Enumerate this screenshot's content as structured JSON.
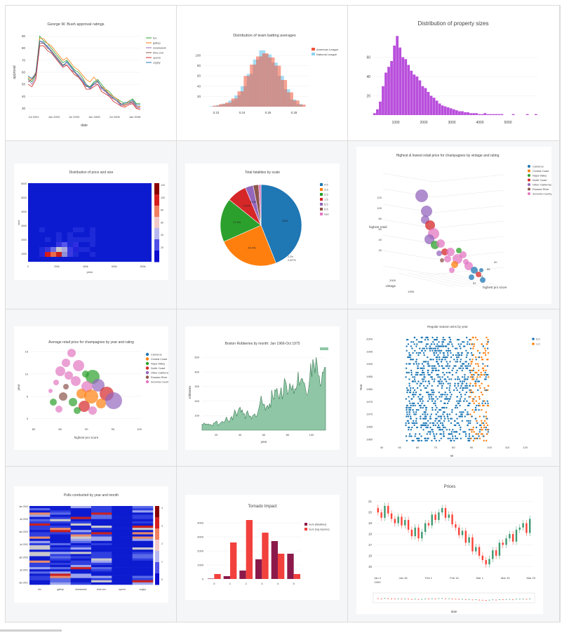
{
  "charts": [
    {
      "id": "bush",
      "type": "line",
      "title": "George W. Bush approval ratings",
      "xlabel": "date",
      "ylabel": "approval",
      "xticks": [
        "Jul 2001",
        "Jan 2003",
        "Jul 2003",
        "Jan 2005",
        "Jul 2006",
        "Jan 2008"
      ],
      "yticks": [
        "90",
        "80",
        "70",
        "60",
        "50",
        "40",
        "30"
      ],
      "ylim": [
        28,
        92
      ],
      "legend": [
        "fox",
        "gallup",
        "newsweek",
        "time.cnn",
        "upenn",
        "zogby"
      ],
      "colors": [
        "#2ca02c",
        "#ff7f0e",
        "#9467bd",
        "#8c564b",
        "#d62728",
        "#1f77b4"
      ],
      "series": [
        [
          55,
          52,
          58,
          90,
          86,
          84,
          80,
          76,
          72,
          68,
          70,
          66,
          62,
          60,
          56,
          50,
          48,
          52,
          54,
          50,
          46,
          44,
          40,
          38,
          36,
          34,
          36,
          38,
          34,
          34
        ],
        [
          56,
          54,
          60,
          88,
          88,
          84,
          82,
          78,
          74,
          70,
          72,
          68,
          64,
          62,
          58,
          54,
          52,
          56,
          52,
          48,
          46,
          42,
          40,
          38,
          34,
          32,
          36,
          34,
          30,
          32
        ],
        [
          54,
          50,
          56,
          86,
          84,
          82,
          78,
          74,
          70,
          66,
          68,
          64,
          60,
          58,
          54,
          50,
          46,
          50,
          50,
          46,
          44,
          40,
          38,
          36,
          32,
          33,
          34,
          35,
          31,
          30
        ],
        [
          52,
          54,
          58,
          84,
          84,
          80,
          78,
          74,
          70,
          66,
          66,
          62,
          60,
          56,
          52,
          48,
          48,
          50,
          52,
          48,
          44,
          42,
          38,
          36,
          34,
          33,
          34,
          36,
          32,
          31
        ],
        [
          50,
          48,
          54,
          82,
          82,
          78,
          76,
          72,
          68,
          64,
          66,
          62,
          58,
          56,
          52,
          46,
          46,
          48,
          50,
          44,
          42,
          40,
          36,
          34,
          32,
          31,
          33,
          34,
          30,
          29
        ],
        [
          57,
          55,
          59,
          86,
          85,
          81,
          77,
          73,
          69,
          65,
          69,
          65,
          61,
          57,
          53,
          49,
          47,
          51,
          53,
          47,
          45,
          41,
          39,
          37,
          33,
          35,
          35,
          37,
          33,
          33
        ]
      ]
    },
    {
      "id": "batting",
      "type": "bar",
      "title": "Distribution of team batting averages",
      "xticks": [
        "0.22",
        "0.24",
        "0.26",
        "0.28"
      ],
      "yticks": [
        "100",
        "80",
        "60",
        "40",
        "20"
      ],
      "ylim": [
        0,
        115
      ],
      "legend": [
        "American League",
        "National League"
      ],
      "colors": [
        "#ef553b",
        "#8ed3f0"
      ],
      "al": [
        2,
        5,
        8,
        16,
        30,
        60,
        82,
        98,
        104,
        96,
        80,
        52,
        28,
        12,
        4
      ],
      "nl": [
        1,
        3,
        6,
        12,
        22,
        40,
        64,
        92,
        110,
        102,
        86,
        60,
        34,
        14,
        5
      ]
    },
    {
      "id": "property",
      "type": "bar",
      "title": "Distribution of property sizes",
      "xticks": [
        "1000",
        "2000",
        "3000",
        "4000",
        "5000"
      ],
      "yticks": [
        "60",
        "40",
        "20"
      ],
      "ylim": [
        0,
        80
      ],
      "color": "#b94fdc",
      "values": [
        2,
        6,
        14,
        30,
        44,
        50,
        56,
        72,
        82,
        70,
        60,
        58,
        52,
        46,
        42,
        40,
        36,
        30,
        28,
        24,
        20,
        18,
        15,
        12,
        10,
        9,
        8,
        7,
        6,
        5,
        4,
        4,
        3,
        3,
        2,
        2,
        2,
        1,
        1,
        2,
        1,
        1,
        1,
        1,
        1,
        1,
        0,
        0,
        0,
        1,
        0,
        0,
        0,
        0,
        1,
        0,
        0,
        1
      ]
    },
    {
      "id": "heat1",
      "type": "heatmap",
      "title": "Distribution of price and size",
      "xlabel": "price",
      "ylabel": "size",
      "xticks": [
        "0",
        "200k",
        "400k",
        "600k",
        "800k"
      ],
      "yticks": [
        "6000",
        "5000",
        "4000",
        "3000",
        "2000",
        "1000"
      ],
      "cticks": [
        "120",
        "100",
        "80",
        "60",
        "40",
        "20"
      ]
    },
    {
      "id": "pie",
      "type": "pie",
      "title": "Total fatalities by scale",
      "legend": [
        "4.5",
        "3.5",
        "2.5",
        "1.5",
        "5.5",
        "0.5",
        "nan"
      ],
      "values": [
        44,
        24.4,
        17.4,
        7.91,
        3.16,
        2.2,
        0.93
      ],
      "labels": [
        "44%",
        "24.4%",
        "17.4%",
        "7.91%",
        "3.16%",
        "",
        ""
      ],
      "colors": [
        "#1f77b4",
        "#ff7f0e",
        "#2ca02c",
        "#d62728",
        "#9467bd",
        "#8c564b",
        "#e377c2"
      ],
      "annotations": [
        "2.2%",
        "0.927%"
      ]
    },
    {
      "id": "bubble3d",
      "type": "scatter",
      "title": "Highest & lowest retail price for champagnes by vintage and rating",
      "xlabel": "vintage",
      "ylabel": "highest retail",
      "zlabel": "highest pro score",
      "yticks": [
        "120",
        "100",
        "80",
        "60",
        "40",
        "20"
      ],
      "xticks": [
        "2000",
        "1995"
      ],
      "zticks": [
        "90",
        "88",
        "94",
        "92"
      ],
      "legend": [
        "Carneros",
        "Central Coast",
        "Napa Valley",
        "North Coast",
        "Other California",
        "Russian River",
        "Sonoma County"
      ],
      "colors": [
        "#1f77b4",
        "#ff7f0e",
        "#2ca02c",
        "#d62728",
        "#9467bd",
        "#8c564b",
        "#e377c2"
      ]
    },
    {
      "id": "bubble2d",
      "type": "scatter",
      "title": "Average retail price for champagnes by year and rating",
      "xlabel": "highest pro score",
      "ylabel": "year",
      "xticks": [
        "80",
        "85",
        "90",
        "95",
        "100"
      ],
      "yticks": [
        "15",
        "10",
        "5",
        "0"
      ],
      "legend": [
        "Carneros",
        "Central Coast",
        "Napa Valley",
        "North Coast",
        "Other California",
        "Russian River",
        "Sonoma County"
      ],
      "colors": [
        "#1f77b4",
        "#ff7f0e",
        "#2ca02c",
        "#d62728",
        "#9467bd",
        "#8c564b",
        "#e377c2"
      ]
    },
    {
      "id": "boston",
      "type": "area",
      "title": "Boston Robberies by month: Jan 1966-Oct 1975",
      "xlabel": "year",
      "ylabel": "robberies",
      "xticks": [
        "20",
        "40",
        "60",
        "80",
        "100"
      ],
      "yticks": [
        "500",
        "400",
        "300",
        "200",
        "100"
      ],
      "ylim": [
        0,
        520
      ],
      "color": "#8fc7a6",
      "values": [
        41,
        39,
        50,
        40,
        43,
        38,
        44,
        35,
        39,
        35,
        29,
        49,
        50,
        59,
        63,
        32,
        39,
        47,
        53,
        60,
        57,
        52,
        70,
        90,
        74,
        62,
        55,
        84,
        94,
        70,
        108,
        139,
        120,
        97,
        126,
        149,
        158,
        124,
        140,
        109,
        114,
        77,
        120,
        133,
        110,
        92,
        97,
        78,
        99,
        107,
        112,
        90,
        98,
        125,
        155,
        190,
        236,
        189,
        174,
        178,
        136,
        161,
        171,
        149,
        184,
        155,
        276,
        224,
        213,
        279,
        268,
        287,
        238,
        213,
        257,
        293,
        212,
        246,
        353,
        339,
        308,
        247,
        257,
        322,
        298,
        273,
        312,
        249,
        286,
        279,
        309,
        401,
        309,
        328,
        353,
        354,
        327,
        324,
        285,
        243,
        241,
        287,
        355,
        460,
        364,
        487,
        452,
        391,
        500,
        451,
        375,
        372,
        302,
        316,
        398,
        394,
        431,
        431
      ]
    },
    {
      "id": "dots",
      "type": "scatter",
      "title": "Regular season wins by year",
      "xlabel": "W",
      "ylabel": "Year",
      "xticks": [
        "40",
        "50",
        "60",
        "70",
        "80",
        "90",
        "100",
        "110",
        "120"
      ],
      "yticks": [
        "2000",
        "1995",
        "1990",
        "1985",
        "1980",
        "1975",
        "1970",
        "1965",
        "1960"
      ],
      "legend": [
        "0.0",
        "1.0"
      ],
      "colors": [
        "#1f77b4",
        "#ff7f0e"
      ]
    },
    {
      "id": "heat2",
      "type": "heatmap",
      "title": "Polls conducted by year and month",
      "xticks": [
        "fox",
        "gallup",
        "newsweek",
        "time.cnn",
        "upenn",
        "zogby"
      ],
      "yticks": [
        "Jan 2004",
        "Jul 2003",
        "Jan 2003",
        "Jul 2002",
        "Jan 2002",
        "Jul 2001",
        "Jan 2001"
      ],
      "cticks": [
        "4",
        "3",
        "2",
        "1",
        "0"
      ]
    },
    {
      "id": "tornado",
      "type": "bar",
      "title": "Tornado Impact",
      "categories": [
        "0",
        "1",
        "2",
        "3",
        "4",
        "5"
      ],
      "xticks": [
        "0",
        "1",
        "2",
        "3",
        "4",
        "5"
      ],
      "yticks": [
        "4000",
        "3000",
        "2000",
        "1000",
        "0"
      ],
      "ylim": [
        0,
        4500
      ],
      "legend": [
        "Sum (fatalities)",
        "Sum (log injuries)"
      ],
      "colors": [
        "#8b1a4a",
        "#f2413d"
      ],
      "fatalities": [
        30,
        200,
        600,
        1400,
        2700,
        1800
      ],
      "injuries": [
        350,
        2600,
        4200,
        3300,
        1800,
        350
      ]
    },
    {
      "id": "prices",
      "type": "candlestick",
      "title": "Prices",
      "xlabel": "date",
      "xticks": [
        "Jan 4",
        "Jan 18",
        "Feb 1",
        "Feb 15",
        "Mar 1",
        "Mar 15",
        "Mar 29"
      ],
      "xsub": "2009",
      "yticks": [
        "21",
        "20",
        "19",
        "18",
        "17",
        "16",
        "15"
      ],
      "ylim": [
        14.5,
        21.5
      ],
      "up": "#3d9970",
      "down": "#ff4136",
      "closes": [
        20.0,
        19.5,
        20.6,
        19.9,
        19.4,
        19.0,
        19.6,
        18.8,
        19.3,
        18.4,
        17.8,
        18.6,
        17.6,
        18.2,
        19.0,
        18.8,
        19.8,
        19.3,
        20.0,
        20.4,
        19.5,
        19.8,
        18.9,
        18.6,
        17.9,
        18.3,
        17.2,
        17.7,
        16.4,
        16.8,
        16.0,
        15.6,
        15.2,
        15.7,
        16.5,
        16.0,
        17.2,
        17.0,
        17.6,
        18.0,
        17.3,
        18.4,
        18.6,
        19.0,
        18.1,
        19.4
      ]
    }
  ]
}
